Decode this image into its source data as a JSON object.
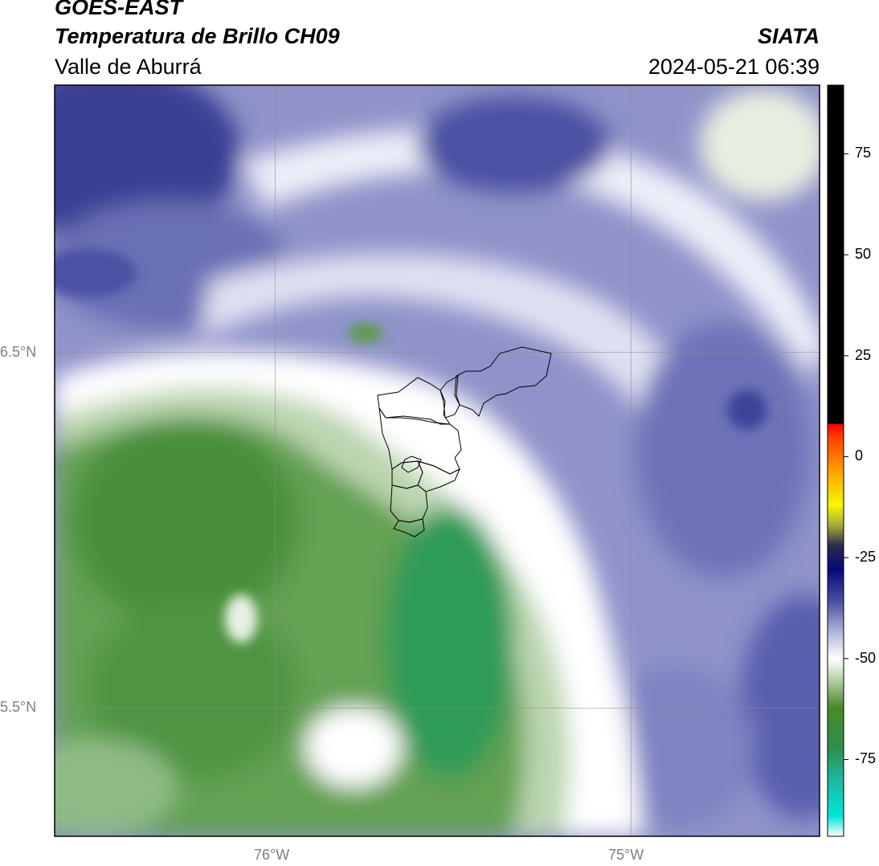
{
  "header": {
    "satellite": "GOES-EAST",
    "product": "Temperatura de Brillo CH09",
    "region": "Valle de Aburrá",
    "brand": "SIATA",
    "datetime": "2024-05-21 06:39"
  },
  "map": {
    "lat_labels": [
      "6.5°N",
      "5.5°N"
    ],
    "lon_labels": [
      "76°W",
      "75°W"
    ],
    "graticule_lats": [
      6.5,
      5.5
    ],
    "graticule_lons": [
      -76,
      -75
    ],
    "extent": {
      "lon_min": -76.62,
      "lon_max": -74.47,
      "lat_min": 5.14,
      "lat_max": 7.25
    }
  },
  "colorbar": {
    "min": -94,
    "max": 92,
    "ticks": [
      "75",
      "50",
      "25",
      "0",
      "-25",
      "-50",
      "-75"
    ],
    "tick_values": [
      75,
      50,
      25,
      0,
      -25,
      -50,
      -75
    ],
    "stops": [
      {
        "v": -94,
        "c": "#ffffff"
      },
      {
        "v": -89,
        "c": "#00e6d8"
      },
      {
        "v": -80,
        "c": "#1fb7a0"
      },
      {
        "v": -72,
        "c": "#2e8f4a"
      },
      {
        "v": -62,
        "c": "#4a8a2a"
      },
      {
        "v": -55,
        "c": "#b9d2ac"
      },
      {
        "v": -50,
        "c": "#ffffff"
      },
      {
        "v": -44,
        "c": "#b8bcdc"
      },
      {
        "v": -36,
        "c": "#4c52a4"
      },
      {
        "v": -28,
        "c": "#08087e"
      },
      {
        "v": -22,
        "c": "#2b2a4a"
      },
      {
        "v": -17,
        "c": "#a4ab3a"
      },
      {
        "v": -12,
        "c": "#f7f700"
      },
      {
        "v": -4,
        "c": "#ffa500"
      },
      {
        "v": 5,
        "c": "#ff3b00"
      },
      {
        "v": 8,
        "c": "#ff0000"
      },
      {
        "v": 8.01,
        "c": "#000000"
      },
      {
        "v": 92,
        "c": "#000000"
      }
    ]
  },
  "palette": {
    "deep_cloud": "#3a3f94",
    "mid_cloud": "#7a7fc0",
    "light_cloud": "#c9cbe4",
    "clear_white": "#ffffff",
    "pale_green": "#bcd6b0",
    "green": "#4f9040",
    "deep_green": "#2e9a57",
    "boundary": "#000000",
    "graticule": "#8c8c8c"
  }
}
